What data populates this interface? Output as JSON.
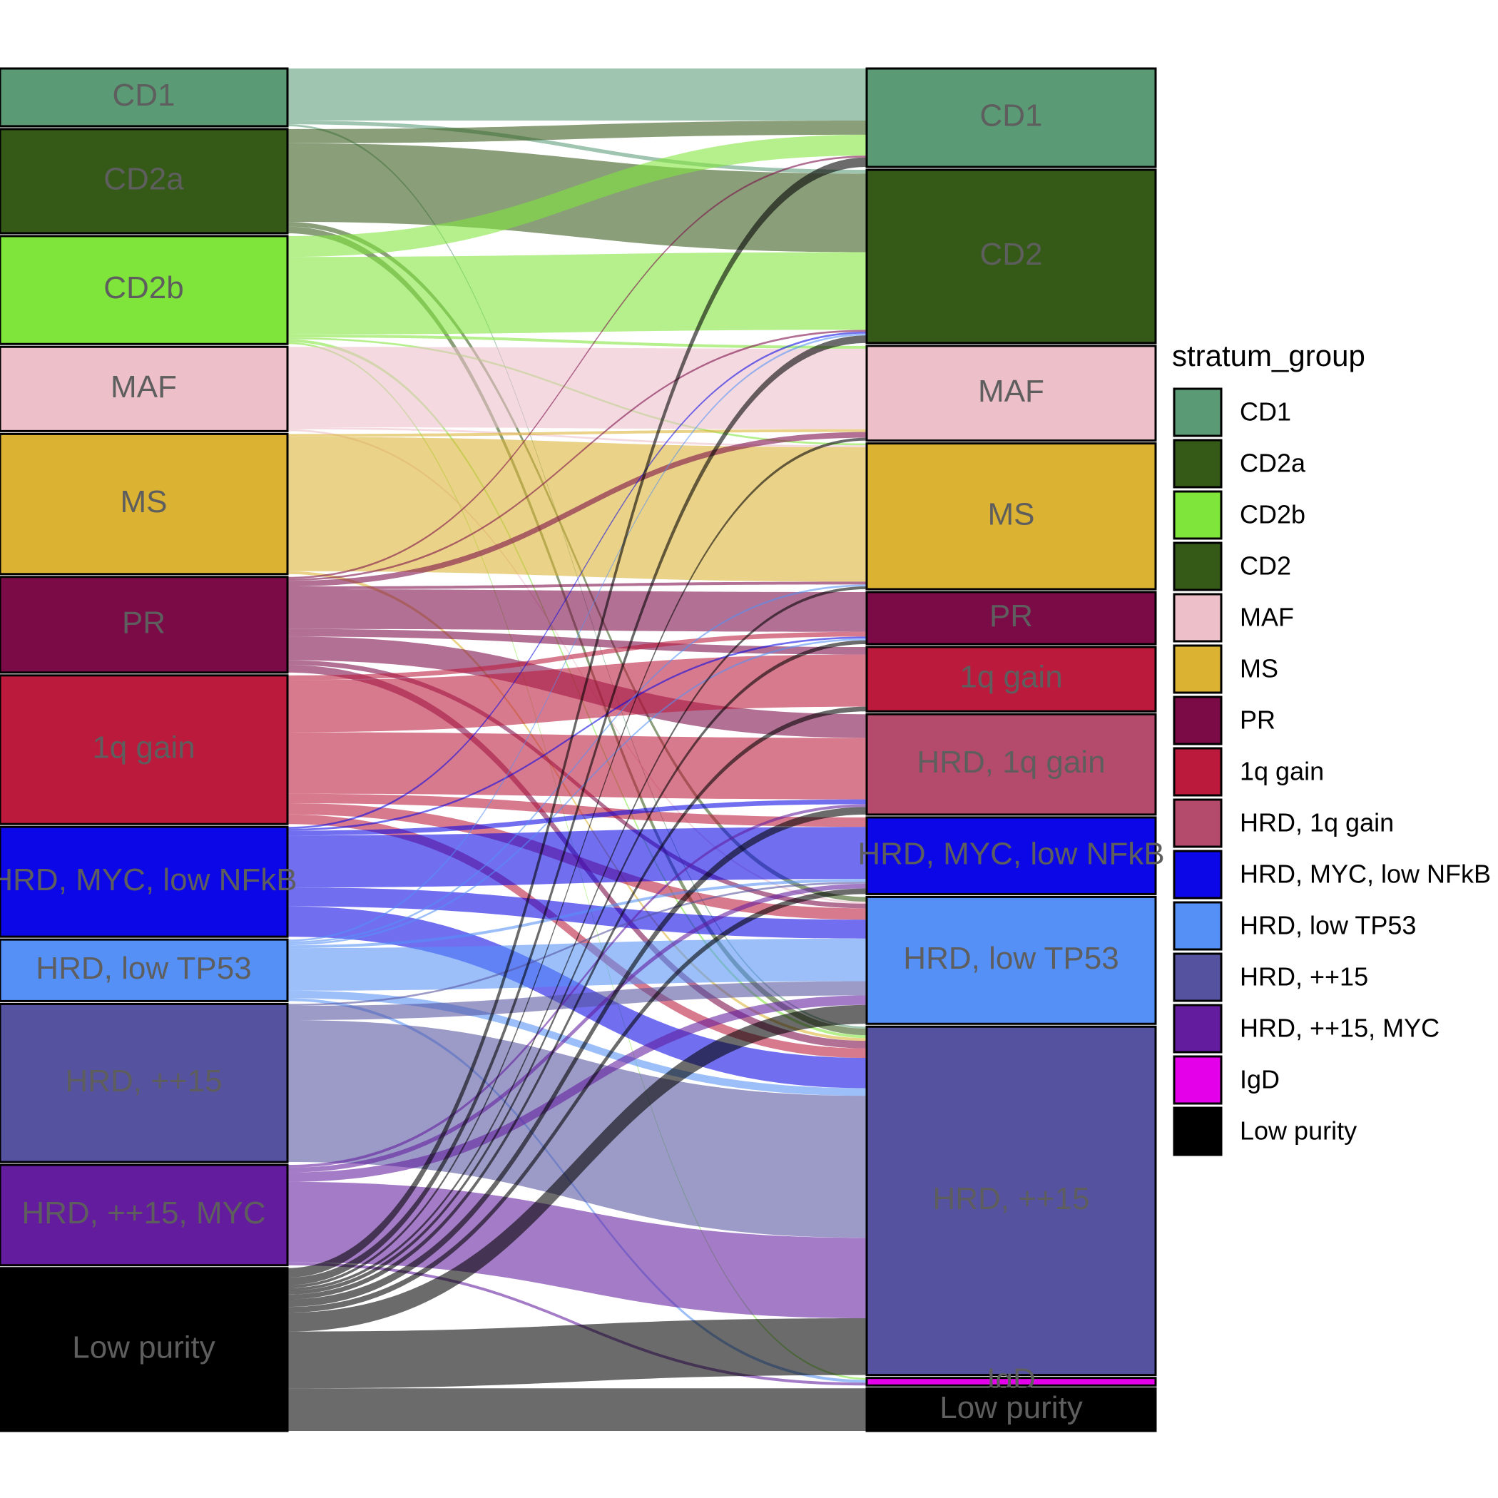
{
  "chart_data": {
    "type": "alluvial",
    "legend_title": "stratum_group",
    "groups": [
      {
        "name": "CD1",
        "color": "#5a9a75"
      },
      {
        "name": "CD2a",
        "color": "#355a18"
      },
      {
        "name": "CD2b",
        "color": "#7fe53a"
      },
      {
        "name": "CD2",
        "color": "#355a18"
      },
      {
        "name": "MAF",
        "color": "#ecbfc9"
      },
      {
        "name": "MS",
        "color": "#dbb232"
      },
      {
        "name": "PR",
        "color": "#7a0b47"
      },
      {
        "name": "1q gain",
        "color": "#bb1a3d"
      },
      {
        "name": "HRD, 1q gain",
        "color": "#b44a6c"
      },
      {
        "name": "HRD, MYC, low NFkB",
        "color": "#0b07e6"
      },
      {
        "name": "HRD, low TP53",
        "color": "#5590f7"
      },
      {
        "name": "HRD, ++15",
        "color": "#55529f"
      },
      {
        "name": "HRD, ++15, MYC",
        "color": "#631c9e"
      },
      {
        "name": "IgD",
        "color": "#e400e9"
      },
      {
        "name": "Low purity",
        "color": "#000000"
      }
    ],
    "left": [
      "CD1",
      "CD2a",
      "CD2b",
      "MAF",
      "MS",
      "PR",
      "1q gain",
      "HRD, MYC, low NFkB",
      "HRD, low TP53",
      "HRD, ++15",
      "HRD, ++15, MYC",
      "Low purity"
    ],
    "right": [
      "CD1",
      "CD2",
      "MAF",
      "MS",
      "PR",
      "1q gain",
      "HRD, 1q gain",
      "HRD, MYC, low NFkB",
      "HRD, low TP53",
      "HRD, ++15",
      "IgD",
      "Low purity"
    ],
    "flows": [
      {
        "from": "CD1",
        "to": "CD1",
        "value": 55
      },
      {
        "from": "CD1",
        "to": "CD2",
        "value": 4
      },
      {
        "from": "CD1",
        "to": "HRD, ++15",
        "value": 2
      },
      {
        "from": "CD2a",
        "to": "CD1",
        "value": 15
      },
      {
        "from": "CD2a",
        "to": "CD2",
        "value": 83
      },
      {
        "from": "CD2a",
        "to": "HRD, low TP53",
        "value": 5
      },
      {
        "from": "CD2a",
        "to": "HRD, ++15",
        "value": 7
      },
      {
        "from": "CD2b",
        "to": "CD1",
        "value": 22
      },
      {
        "from": "CD2b",
        "to": "CD2",
        "value": 82
      },
      {
        "from": "CD2b",
        "to": "MAF",
        "value": 3
      },
      {
        "from": "CD2b",
        "to": "MS",
        "value": 2
      },
      {
        "from": "CD2b",
        "to": "HRD, ++15",
        "value": 3
      },
      {
        "from": "CD2b",
        "to": "IgD",
        "value": 2
      },
      {
        "from": "MAF",
        "to": "MAF",
        "value": 85
      },
      {
        "from": "MAF",
        "to": "MS",
        "value": 2
      },
      {
        "from": "MAF",
        "to": "HRD, low TP53",
        "value": 2
      },
      {
        "from": "MS",
        "to": "MAF",
        "value": 3
      },
      {
        "from": "MS",
        "to": "MS",
        "value": 142
      },
      {
        "from": "MS",
        "to": "HRD, ++15",
        "value": 3
      },
      {
        "from": "PR",
        "to": "CD1",
        "value": 2
      },
      {
        "from": "PR",
        "to": "CD2",
        "value": 2
      },
      {
        "from": "PR",
        "to": "MAF",
        "value": 6
      },
      {
        "from": "PR",
        "to": "MS",
        "value": 3
      },
      {
        "from": "PR",
        "to": "PR",
        "value": 42
      },
      {
        "from": "PR",
        "to": "1q gain",
        "value": 8
      },
      {
        "from": "PR",
        "to": "HRD, 1q gain",
        "value": 25
      },
      {
        "from": "PR",
        "to": "HRD, low TP53",
        "value": 5
      },
      {
        "from": "PR",
        "to": "HRD, ++15",
        "value": 8
      },
      {
        "from": "1q gain",
        "to": "PR",
        "value": 5
      },
      {
        "from": "1q gain",
        "to": "1q gain",
        "value": 55
      },
      {
        "from": "1q gain",
        "to": "HRD, 1q gain",
        "value": 65
      },
      {
        "from": "1q gain",
        "to": "HRD, MYC, low NFkB",
        "value": 10
      },
      {
        "from": "1q gain",
        "to": "HRD, low TP53",
        "value": 12
      },
      {
        "from": "1q gain",
        "to": "HRD, ++15",
        "value": 10
      },
      {
        "from": "HRD, MYC, low NFkB",
        "to": "CD2",
        "value": 2
      },
      {
        "from": "HRD, MYC, low NFkB",
        "to": "PR",
        "value": 2
      },
      {
        "from": "HRD, MYC, low NFkB",
        "to": "HRD, 1q gain",
        "value": 5
      },
      {
        "from": "HRD, MYC, low NFkB",
        "to": "HRD, MYC, low NFkB",
        "value": 55
      },
      {
        "from": "HRD, MYC, low NFkB",
        "to": "HRD, low TP53",
        "value": 20
      },
      {
        "from": "HRD, MYC, low NFkB",
        "to": "HRD, ++15",
        "value": 32
      },
      {
        "from": "HRD, low TP53",
        "to": "CD2",
        "value": 2
      },
      {
        "from": "HRD, low TP53",
        "to": "MS",
        "value": 2
      },
      {
        "from": "HRD, low TP53",
        "to": "PR",
        "value": 2
      },
      {
        "from": "HRD, low TP53",
        "to": "HRD, MYC, low NFkB",
        "value": 3
      },
      {
        "from": "HRD, low TP53",
        "to": "HRD, low TP53",
        "value": 45
      },
      {
        "from": "HRD, low TP53",
        "to": "HRD, ++15",
        "value": 8
      },
      {
        "from": "HRD, low TP53",
        "to": "IgD",
        "value": 3
      },
      {
        "from": "HRD, ++15",
        "to": "HRD, MYC, low NFkB",
        "value": 2
      },
      {
        "from": "HRD, ++15",
        "to": "HRD, low TP53",
        "value": 15
      },
      {
        "from": "HRD, ++15",
        "to": "HRD, ++15",
        "value": 150
      },
      {
        "from": "HRD, ++15, MYC",
        "to": "HRD, 1q gain",
        "value": 3
      },
      {
        "from": "HRD, ++15, MYC",
        "to": "HRD, MYC, low NFkB",
        "value": 5
      },
      {
        "from": "HRD, ++15, MYC",
        "to": "HRD, low TP53",
        "value": 10
      },
      {
        "from": "HRD, ++15, MYC",
        "to": "HRD, ++15",
        "value": 85
      },
      {
        "from": "HRD, ++15, MYC",
        "to": "IgD",
        "value": 3
      },
      {
        "from": "Low purity",
        "to": "CD1",
        "value": 10
      },
      {
        "from": "Low purity",
        "to": "CD2",
        "value": 8
      },
      {
        "from": "Low purity",
        "to": "MAF",
        "value": 3
      },
      {
        "from": "Low purity",
        "to": "MS",
        "value": 3
      },
      {
        "from": "Low purity",
        "to": "PR",
        "value": 4
      },
      {
        "from": "Low purity",
        "to": "1q gain",
        "value": 5
      },
      {
        "from": "Low purity",
        "to": "HRD, 1q gain",
        "value": 8
      },
      {
        "from": "Low purity",
        "to": "HRD, MYC, low NFkB",
        "value": 6
      },
      {
        "from": "Low purity",
        "to": "HRD, low TP53",
        "value": 20
      },
      {
        "from": "Low purity",
        "to": "HRD, ++15",
        "value": 60
      },
      {
        "from": "Low purity",
        "to": "Low purity",
        "value": 45
      }
    ]
  }
}
